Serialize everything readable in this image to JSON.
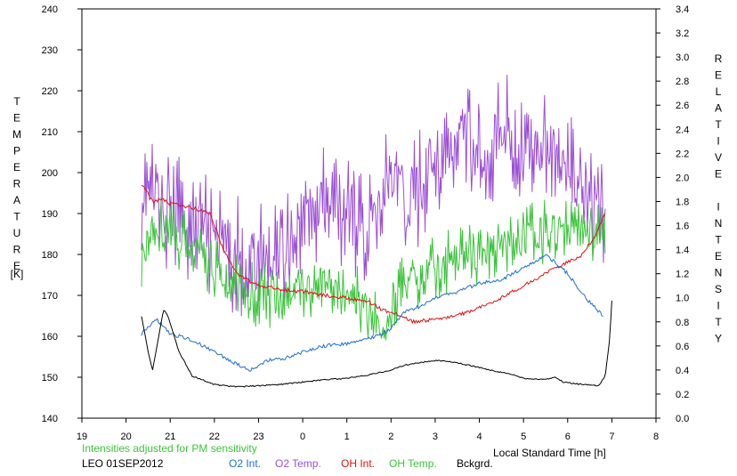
{
  "chart_data": {
    "type": "line",
    "left_axis": {
      "label": "TEMPERATURE",
      "unit": "[K]",
      "range": [
        140,
        240
      ],
      "ticks": [
        "240",
        "230",
        "220",
        "210",
        "200",
        "190",
        "180",
        "170",
        "160",
        "150",
        "140"
      ]
    },
    "right_axis": {
      "label": "RELATIVE INTENSITY",
      "range": [
        0.0,
        3.4
      ],
      "ticks": [
        "3.4",
        "3.2",
        "3.0",
        "2.8",
        "2.6",
        "2.4",
        "2.2",
        "2.0",
        "1.8",
        "1.6",
        "1.4",
        "1.2",
        "1.0",
        "0.8",
        "0.6",
        "0.4",
        "0.2",
        "0.0"
      ]
    },
    "x_axis": {
      "label": "Local Standard Time [h]",
      "ticks": [
        "19",
        "20",
        "21",
        "22",
        "23",
        "0",
        "1",
        "2",
        "3",
        "4",
        "5",
        "6",
        "7",
        "8"
      ]
    },
    "note": "Intensities adjusted for PM sensitivity",
    "station_date": "LEO 01SEP2012",
    "legend": [
      {
        "key": "o2_int",
        "label": "O2 Int.",
        "color": "#1f6fd0"
      },
      {
        "key": "o2_temp",
        "label": "O2 Temp.",
        "color": "#9b4fd6"
      },
      {
        "key": "oh_int",
        "label": "OH Int.",
        "color": "#e01010"
      },
      {
        "key": "oh_temp",
        "label": "OH Temp.",
        "color": "#3cc43c"
      },
      {
        "key": "bckgrd",
        "label": "Bckgrd.",
        "color": "#000000"
      }
    ],
    "series": [
      {
        "key": "o2_temp",
        "axis": "left",
        "x": [
          20.35,
          20.75,
          21.0,
          21.5,
          22.0,
          22.5,
          23.0,
          23.5,
          24.0,
          24.5,
          25.0,
          25.5,
          25.8,
          26.0,
          26.3,
          26.6,
          27.0,
          27.3,
          27.6,
          28.0,
          28.3,
          28.6,
          29.0,
          29.3,
          29.5,
          29.7,
          30.0,
          30.2,
          30.4,
          30.6,
          30.85
        ],
        "values": [
          196,
          193,
          190,
          188,
          183,
          180,
          178,
          182,
          188,
          192,
          190,
          186,
          195,
          200,
          192,
          196,
          205,
          202,
          208,
          207,
          206,
          211,
          205,
          207,
          209,
          204,
          200,
          197,
          193,
          190,
          188
        ],
        "amplitude": 15
      },
      {
        "key": "oh_temp",
        "axis": "left",
        "x": [
          20.35,
          20.75,
          21.0,
          21.5,
          22.0,
          22.5,
          23.0,
          23.5,
          24.0,
          24.5,
          25.0,
          25.5,
          25.8,
          26.0,
          26.3,
          26.6,
          27.0,
          27.5,
          28.0,
          28.5,
          29.0,
          29.3,
          29.6,
          30.0,
          30.3,
          30.6,
          30.85
        ],
        "values": [
          180,
          188,
          185,
          182,
          176,
          172,
          170,
          170,
          172,
          173,
          172,
          166,
          162,
          168,
          172,
          174,
          177,
          179,
          180,
          182,
          184,
          185,
          186,
          186,
          185,
          184,
          187
        ],
        "amplitude": 8
      },
      {
        "key": "oh_int",
        "axis": "right",
        "x": [
          20.35,
          20.6,
          20.8,
          21.0,
          21.5,
          21.9,
          22.2,
          22.5,
          23.0,
          23.5,
          24.0,
          24.5,
          25.0,
          25.5,
          25.8,
          26.1,
          26.5,
          27.0,
          27.5,
          28.0,
          28.5,
          29.0,
          29.5,
          30.0,
          30.3,
          30.6,
          30.85
        ],
        "values": [
          1.95,
          1.8,
          1.82,
          1.78,
          1.75,
          1.7,
          1.4,
          1.2,
          1.1,
          1.07,
          1.05,
          1.02,
          1.0,
          0.97,
          0.9,
          0.87,
          0.8,
          0.82,
          0.85,
          0.92,
          1.0,
          1.1,
          1.2,
          1.3,
          1.35,
          1.5,
          1.7
        ],
        "amplitude": 0.03
      },
      {
        "key": "o2_int",
        "axis": "right",
        "x": [
          20.35,
          20.7,
          21.0,
          21.5,
          22.0,
          22.5,
          22.8,
          23.2,
          23.6,
          24.0,
          24.5,
          25.0,
          25.4,
          25.8,
          26.0,
          26.3,
          26.6,
          27.0,
          27.5,
          28.0,
          28.5,
          29.0,
          29.5,
          29.7,
          30.0,
          30.4,
          30.8
        ],
        "values": [
          0.7,
          0.82,
          0.7,
          0.65,
          0.55,
          0.45,
          0.4,
          0.48,
          0.5,
          0.55,
          0.6,
          0.62,
          0.65,
          0.7,
          0.75,
          0.88,
          0.92,
          1.0,
          1.05,
          1.12,
          1.15,
          1.25,
          1.35,
          1.3,
          1.2,
          1.0,
          0.85
        ],
        "amplitude": 0.03
      },
      {
        "key": "bckgrd",
        "axis": "right",
        "x": [
          20.35,
          20.5,
          20.6,
          20.75,
          20.85,
          20.95,
          21.2,
          21.5,
          22.0,
          22.5,
          23.0,
          23.5,
          24.0,
          24.5,
          25.0,
          25.5,
          26.0,
          26.3,
          26.6,
          27.0,
          27.5,
          28.0,
          28.5,
          28.8,
          29.0,
          29.5,
          29.7,
          29.9,
          30.3,
          30.7,
          30.85,
          30.95,
          31.0
        ],
        "values": [
          0.85,
          0.55,
          0.4,
          0.7,
          0.9,
          0.85,
          0.55,
          0.35,
          0.28,
          0.26,
          0.27,
          0.28,
          0.3,
          0.32,
          0.33,
          0.36,
          0.4,
          0.44,
          0.46,
          0.48,
          0.46,
          0.42,
          0.38,
          0.36,
          0.33,
          0.32,
          0.34,
          0.3,
          0.28,
          0.27,
          0.35,
          0.65,
          0.98
        ],
        "amplitude": 0.01
      }
    ]
  }
}
